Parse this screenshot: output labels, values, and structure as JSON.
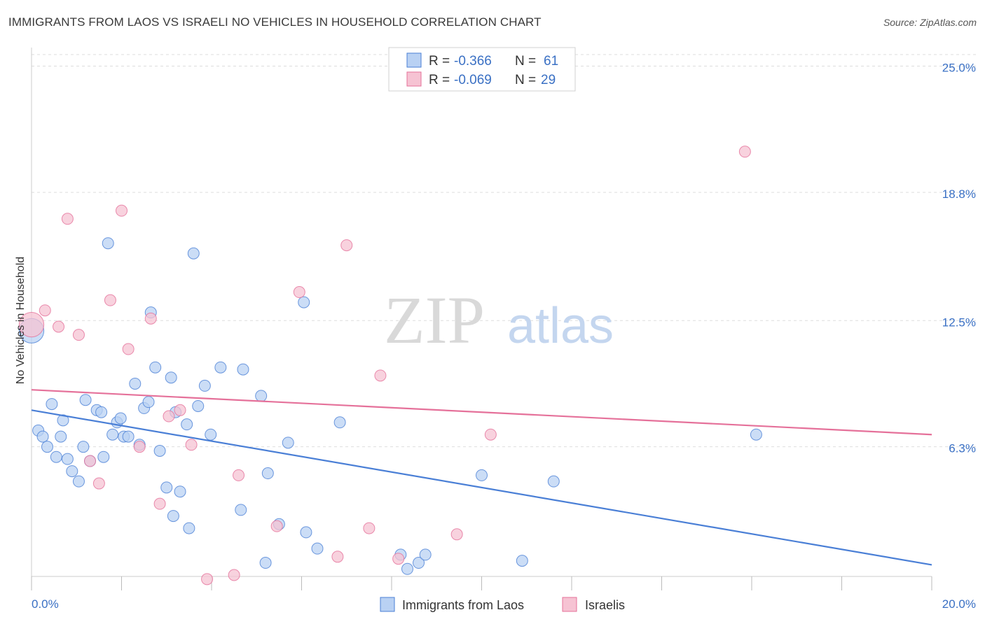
{
  "title": "IMMIGRANTS FROM LAOS VS ISRAELI NO VEHICLES IN HOUSEHOLD CORRELATION CHART",
  "source": "Source: ZipAtlas.com",
  "watermark": {
    "zip": "ZIP",
    "atlas": "atlas"
  },
  "colors": {
    "blue": "#4a7fd6",
    "blue_fill": "#b9d1f3",
    "pink": "#e5719a",
    "pink_fill": "#f6c3d3",
    "tick_text": "#3a70c4",
    "grid": "#dddddd"
  },
  "legend_top": {
    "rows": [
      {
        "r_label": "R =",
        "r_value": "-0.366",
        "n_label": "N =",
        "n_value": "61"
      },
      {
        "r_label": "R =",
        "r_value": "-0.069",
        "n_label": "N =",
        "n_value": "29"
      }
    ]
  },
  "legend_bottom": [
    "Immigrants from Laos",
    "Israelis"
  ],
  "chart_data": {
    "type": "scatter",
    "title": "IMMIGRANTS FROM LAOS VS ISRAELI NO VEHICLES IN HOUSEHOLD CORRELATION CHART",
    "xlabel": "",
    "ylabel": "No Vehicles in Household",
    "xlim": [
      0,
      20
    ],
    "ylim": [
      0,
      25.5
    ],
    "x_tick_labels": [
      "0.0%",
      "20.0%"
    ],
    "y_ticks": [
      6.3,
      12.5,
      18.8,
      25.0
    ],
    "y_tick_labels": [
      "6.3%",
      "12.5%",
      "18.8%",
      "25.0%"
    ],
    "grid": true,
    "legend_position": "top-center",
    "series": [
      {
        "name": "Immigrants from Laos",
        "r": -0.366,
        "n": 61,
        "trend": {
          "x": [
            0,
            20
          ],
          "y": [
            8.1,
            0.5
          ]
        },
        "points": [
          [
            0.0,
            12.0,
            2.2
          ],
          [
            0.15,
            7.1,
            1
          ],
          [
            0.25,
            6.8,
            1
          ],
          [
            0.35,
            6.3,
            1
          ],
          [
            0.45,
            8.4,
            1
          ],
          [
            0.55,
            5.8,
            1
          ],
          [
            0.65,
            6.8,
            1
          ],
          [
            0.7,
            7.6,
            1
          ],
          [
            0.8,
            5.7,
            1
          ],
          [
            0.9,
            5.1,
            1
          ],
          [
            1.05,
            4.6,
            1
          ],
          [
            1.15,
            6.3,
            1
          ],
          [
            1.2,
            8.6,
            1
          ],
          [
            1.3,
            5.6,
            1
          ],
          [
            1.45,
            8.1,
            1
          ],
          [
            1.55,
            8.0,
            1
          ],
          [
            1.6,
            5.8,
            1
          ],
          [
            1.7,
            16.3,
            1
          ],
          [
            1.8,
            6.9,
            1
          ],
          [
            1.9,
            7.5,
            1
          ],
          [
            1.98,
            7.7,
            1
          ],
          [
            2.05,
            6.8,
            1
          ],
          [
            2.15,
            6.8,
            1
          ],
          [
            2.3,
            9.4,
            1
          ],
          [
            2.4,
            6.4,
            1
          ],
          [
            2.5,
            8.2,
            1
          ],
          [
            2.6,
            8.5,
            1
          ],
          [
            2.65,
            12.9,
            1
          ],
          [
            2.75,
            10.2,
            1
          ],
          [
            2.85,
            6.1,
            1
          ],
          [
            3.0,
            4.3,
            1
          ],
          [
            3.1,
            9.7,
            1
          ],
          [
            3.15,
            2.9,
            1
          ],
          [
            3.2,
            8.0,
            1
          ],
          [
            3.3,
            4.1,
            1
          ],
          [
            3.45,
            7.4,
            1
          ],
          [
            3.5,
            2.3,
            1
          ],
          [
            3.6,
            15.8,
            1
          ],
          [
            3.7,
            8.3,
            1
          ],
          [
            3.85,
            9.3,
            1
          ],
          [
            3.98,
            6.9,
            1
          ],
          [
            4.2,
            10.2,
            1
          ],
          [
            4.65,
            3.2,
            1
          ],
          [
            4.7,
            10.1,
            1
          ],
          [
            5.1,
            8.8,
            1
          ],
          [
            5.2,
            0.6,
            1
          ],
          [
            5.25,
            5.0,
            1
          ],
          [
            5.5,
            2.5,
            1
          ],
          [
            5.7,
            6.5,
            1
          ],
          [
            6.05,
            13.4,
            1
          ],
          [
            6.1,
            2.1,
            1
          ],
          [
            6.35,
            1.3,
            1
          ],
          [
            6.85,
            7.5,
            1
          ],
          [
            8.2,
            1.0,
            1
          ],
          [
            8.35,
            0.3,
            1
          ],
          [
            8.6,
            0.6,
            1
          ],
          [
            8.75,
            1.0,
            1
          ],
          [
            10.0,
            4.9,
            1
          ],
          [
            10.9,
            0.7,
            1
          ],
          [
            11.6,
            4.6,
            1
          ],
          [
            16.1,
            6.9,
            1
          ]
        ]
      },
      {
        "name": "Israelis",
        "r": -0.069,
        "n": 29,
        "trend": {
          "x": [
            0,
            20
          ],
          "y": [
            9.1,
            6.9
          ]
        },
        "points": [
          [
            0.0,
            12.3,
            2.2
          ],
          [
            0.3,
            13.0,
            1
          ],
          [
            0.6,
            12.2,
            1
          ],
          [
            0.8,
            17.5,
            1
          ],
          [
            1.05,
            11.8,
            1
          ],
          [
            1.3,
            5.6,
            1
          ],
          [
            1.5,
            4.5,
            1
          ],
          [
            1.75,
            13.5,
            1
          ],
          [
            2.0,
            17.9,
            1
          ],
          [
            2.15,
            11.1,
            1
          ],
          [
            2.4,
            6.3,
            1
          ],
          [
            2.65,
            12.6,
            1
          ],
          [
            2.85,
            3.5,
            1
          ],
          [
            3.05,
            7.8,
            1
          ],
          [
            3.3,
            8.1,
            1
          ],
          [
            3.55,
            6.4,
            1
          ],
          [
            3.9,
            -0.2,
            1
          ],
          [
            4.5,
            0.0,
            1
          ],
          [
            4.6,
            4.9,
            1
          ],
          [
            5.45,
            2.4,
            1
          ],
          [
            5.95,
            13.9,
            1
          ],
          [
            6.8,
            0.9,
            1
          ],
          [
            7.0,
            16.2,
            1
          ],
          [
            7.5,
            2.3,
            1
          ],
          [
            7.75,
            9.8,
            1
          ],
          [
            8.15,
            0.8,
            1
          ],
          [
            9.45,
            2.0,
            1
          ],
          [
            10.2,
            6.9,
            1
          ],
          [
            15.85,
            20.8,
            1
          ]
        ]
      }
    ]
  }
}
